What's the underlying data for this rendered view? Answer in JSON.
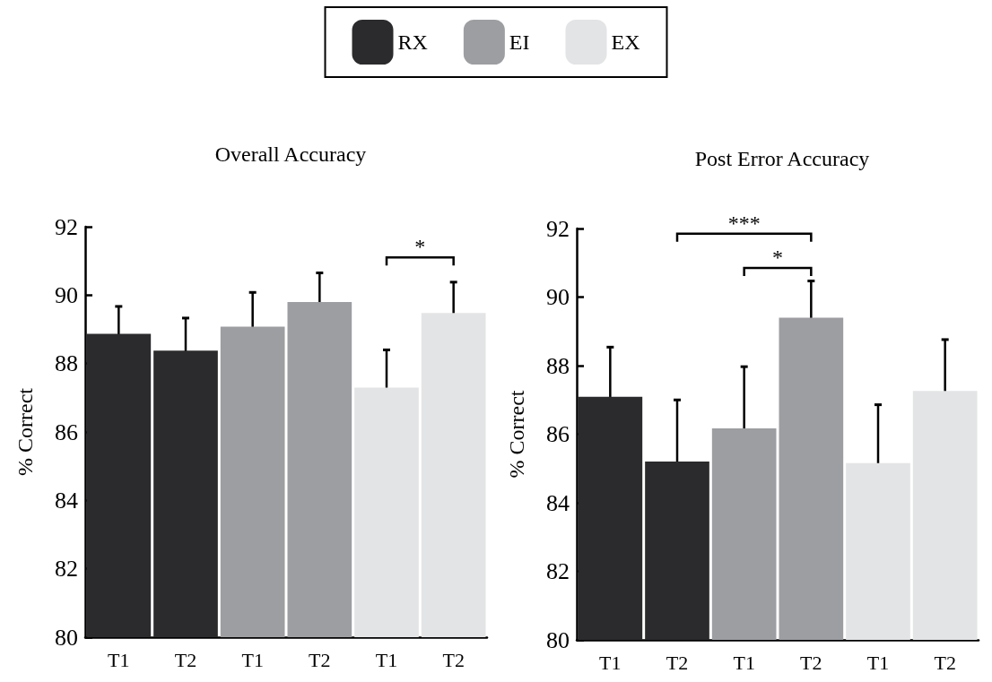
{
  "chart_data": [
    {
      "type": "bar",
      "title": "Overall Accuracy",
      "ylabel": "% Correct",
      "categories": [
        "T1",
        "T2",
        "T1",
        "T2",
        "T1",
        "T2"
      ],
      "series": [
        {
          "name": "RX",
          "color": "#2b2b2d",
          "values": [
            88.87,
            88.38,
            null,
            null,
            null,
            null
          ],
          "errors": [
            0.8,
            0.95,
            null,
            null,
            null,
            null
          ]
        },
        {
          "name": "EI",
          "color": "#9d9ea2",
          "values": [
            null,
            null,
            89.08,
            89.8,
            null,
            null
          ],
          "errors": [
            null,
            null,
            1.0,
            0.85,
            null,
            null
          ]
        },
        {
          "name": "EX",
          "color": "#e3e4e5",
          "values": [
            null,
            null,
            null,
            null,
            87.3,
            89.48
          ],
          "errors": [
            null,
            null,
            null,
            null,
            1.1,
            0.9
          ]
        }
      ],
      "ylim": [
        80,
        92
      ],
      "yticks": [
        80,
        82,
        84,
        86,
        88,
        90,
        92
      ],
      "grid": false,
      "legend": "top",
      "annotations": [
        "*"
      ]
    },
    {
      "type": "bar",
      "title": "Post Error Accuracy",
      "ylabel": "% Correct",
      "categories": [
        "T1",
        "T2",
        "T1",
        "T2",
        "T1",
        "T2"
      ],
      "series": [
        {
          "color": "#2b2b2d",
          "values": [
            87.09,
            85.2,
            null,
            null,
            null,
            null
          ],
          "errors": [
            1.45,
            1.8,
            null,
            null,
            null,
            null
          ]
        },
        {
          "color": "#9d9ea2",
          "values": [
            null,
            null,
            86.17,
            89.4,
            null,
            null
          ],
          "errors": [
            null,
            null,
            1.8,
            1.07,
            null,
            null
          ]
        },
        {
          "color": "#e3e4e5",
          "values": [
            null,
            null,
            null,
            null,
            85.16,
            87.26
          ],
          "errors": [
            null,
            null,
            null,
            null,
            1.7,
            1.5
          ]
        }
      ],
      "ylim": [
        80,
        92
      ],
      "yticks": [
        80,
        82,
        84,
        86,
        88,
        90,
        92
      ],
      "grid": false,
      "legend": false,
      "annotations": [
        "***",
        "*"
      ]
    }
  ]
}
